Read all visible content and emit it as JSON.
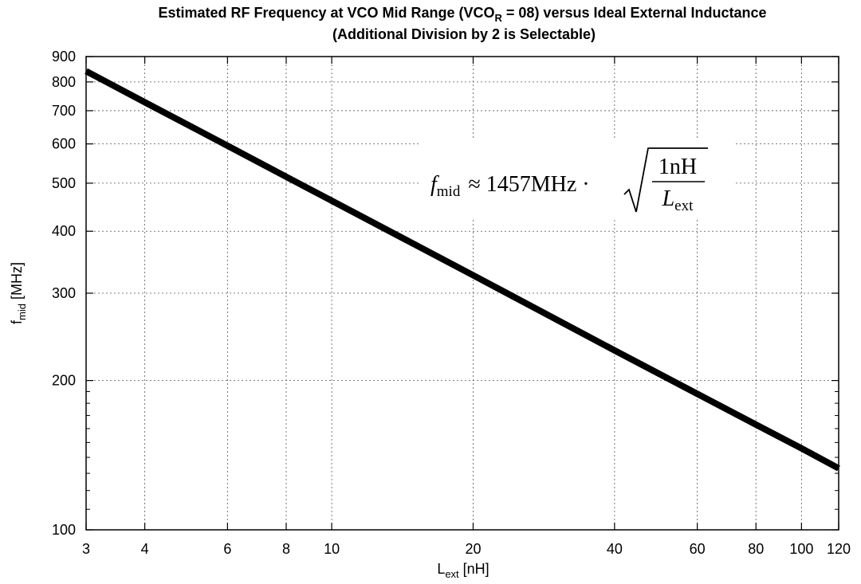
{
  "chart_data": {
    "type": "line",
    "title_line1_prefix": "Estimated RF Frequency at VCO Mid Range (VCO",
    "title_line1_subscript": "R",
    "title_line1_suffix": " = 08) versus Ideal External Inductance",
    "title_line2": "(Additional Division by 2 is Selectable)",
    "xlabel_main": "L",
    "xlabel_sub": "ext",
    "xlabel_unit": " [nH]",
    "ylabel_main": "f",
    "ylabel_sub": "mid",
    "ylabel_unit": " [MHz]",
    "x_scale": "log",
    "y_scale": "log",
    "xlim": [
      3,
      120
    ],
    "ylim": [
      100,
      900
    ],
    "x_ticks": [
      3,
      4,
      6,
      8,
      10,
      20,
      40,
      60,
      80,
      100,
      120
    ],
    "x_tick_labels": [
      "3",
      "4",
      "6",
      "8",
      "10",
      "20",
      "40",
      "60",
      "80",
      "100",
      "120"
    ],
    "y_ticks": [
      100,
      200,
      300,
      400,
      500,
      600,
      700,
      800,
      900
    ],
    "y_tick_labels": [
      "100",
      "200",
      "300",
      "400",
      "500",
      "600",
      "700",
      "800",
      "900"
    ],
    "grid": true,
    "series": [
      {
        "x": [
          3,
          4,
          6,
          8,
          10,
          20,
          40,
          60,
          80,
          100,
          120
        ],
        "y": [
          841,
          728,
          595,
          515,
          461,
          326,
          230,
          188,
          163,
          146,
          133
        ]
      }
    ],
    "annotation": {
      "lhs_var": "f",
      "lhs_sub": "mid",
      "relation": "≈ 1457MHz ·",
      "numerator": "1nH",
      "denominator_var": "L",
      "denominator_sub": "ext"
    }
  }
}
